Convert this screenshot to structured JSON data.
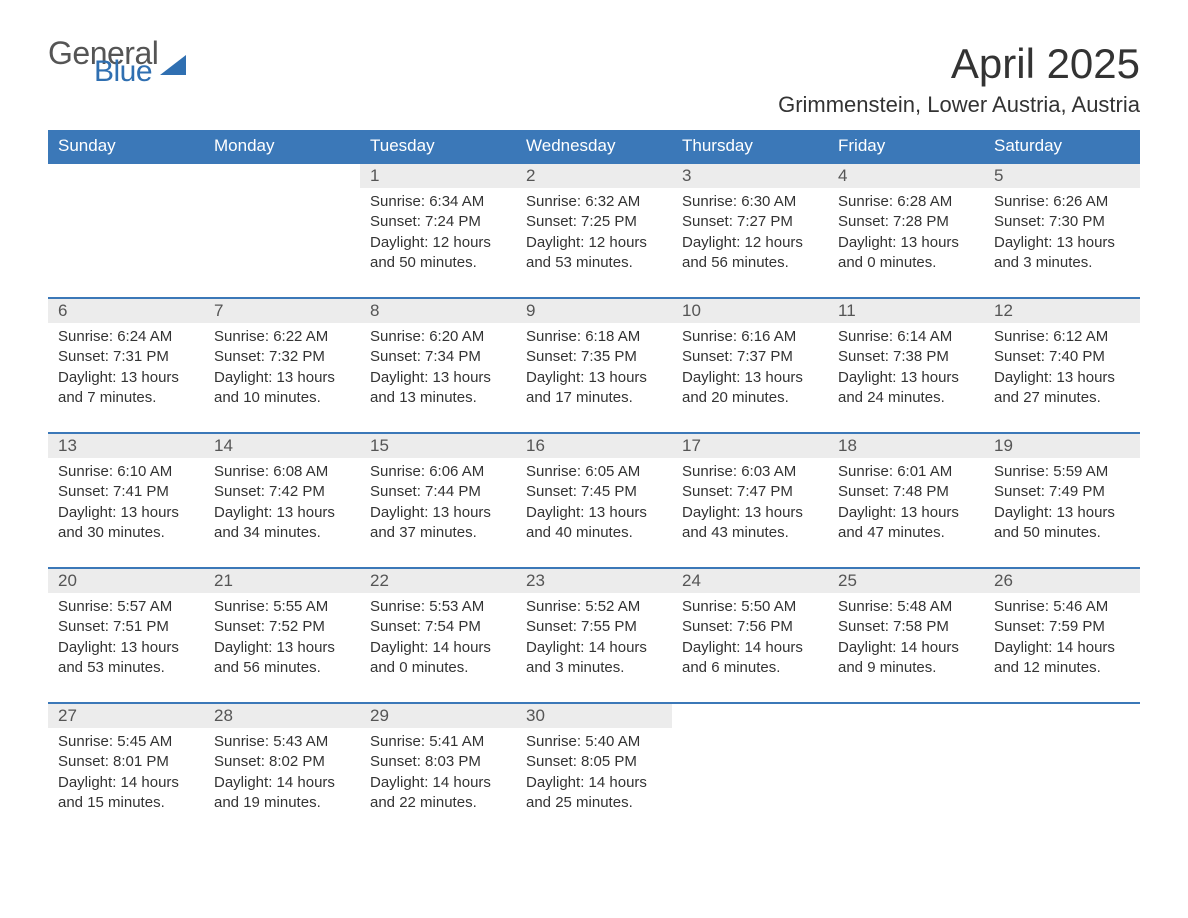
{
  "brand": {
    "word1": "General",
    "word2": "Blue"
  },
  "title": "April 2025",
  "location": "Grimmenstein, Lower Austria, Austria",
  "day_headers": [
    "Sunday",
    "Monday",
    "Tuesday",
    "Wednesday",
    "Thursday",
    "Friday",
    "Saturday"
  ],
  "colors": {
    "header_bg": "#3b78b8",
    "header_text": "#ffffff",
    "daynum_bg": "#ececec",
    "rule": "#3b78b8",
    "brand_blue": "#2f6fb1"
  },
  "weeks": [
    [
      null,
      null,
      {
        "n": "1",
        "sunrise": "6:34 AM",
        "sunset": "7:24 PM",
        "dl_h": "12",
        "dl_m": "50"
      },
      {
        "n": "2",
        "sunrise": "6:32 AM",
        "sunset": "7:25 PM",
        "dl_h": "12",
        "dl_m": "53"
      },
      {
        "n": "3",
        "sunrise": "6:30 AM",
        "sunset": "7:27 PM",
        "dl_h": "12",
        "dl_m": "56"
      },
      {
        "n": "4",
        "sunrise": "6:28 AM",
        "sunset": "7:28 PM",
        "dl_h": "13",
        "dl_m": "0"
      },
      {
        "n": "5",
        "sunrise": "6:26 AM",
        "sunset": "7:30 PM",
        "dl_h": "13",
        "dl_m": "3"
      }
    ],
    [
      {
        "n": "6",
        "sunrise": "6:24 AM",
        "sunset": "7:31 PM",
        "dl_h": "13",
        "dl_m": "7"
      },
      {
        "n": "7",
        "sunrise": "6:22 AM",
        "sunset": "7:32 PM",
        "dl_h": "13",
        "dl_m": "10"
      },
      {
        "n": "8",
        "sunrise": "6:20 AM",
        "sunset": "7:34 PM",
        "dl_h": "13",
        "dl_m": "13"
      },
      {
        "n": "9",
        "sunrise": "6:18 AM",
        "sunset": "7:35 PM",
        "dl_h": "13",
        "dl_m": "17"
      },
      {
        "n": "10",
        "sunrise": "6:16 AM",
        "sunset": "7:37 PM",
        "dl_h": "13",
        "dl_m": "20"
      },
      {
        "n": "11",
        "sunrise": "6:14 AM",
        "sunset": "7:38 PM",
        "dl_h": "13",
        "dl_m": "24"
      },
      {
        "n": "12",
        "sunrise": "6:12 AM",
        "sunset": "7:40 PM",
        "dl_h": "13",
        "dl_m": "27"
      }
    ],
    [
      {
        "n": "13",
        "sunrise": "6:10 AM",
        "sunset": "7:41 PM",
        "dl_h": "13",
        "dl_m": "30"
      },
      {
        "n": "14",
        "sunrise": "6:08 AM",
        "sunset": "7:42 PM",
        "dl_h": "13",
        "dl_m": "34"
      },
      {
        "n": "15",
        "sunrise": "6:06 AM",
        "sunset": "7:44 PM",
        "dl_h": "13",
        "dl_m": "37"
      },
      {
        "n": "16",
        "sunrise": "6:05 AM",
        "sunset": "7:45 PM",
        "dl_h": "13",
        "dl_m": "40"
      },
      {
        "n": "17",
        "sunrise": "6:03 AM",
        "sunset": "7:47 PM",
        "dl_h": "13",
        "dl_m": "43"
      },
      {
        "n": "18",
        "sunrise": "6:01 AM",
        "sunset": "7:48 PM",
        "dl_h": "13",
        "dl_m": "47"
      },
      {
        "n": "19",
        "sunrise": "5:59 AM",
        "sunset": "7:49 PM",
        "dl_h": "13",
        "dl_m": "50"
      }
    ],
    [
      {
        "n": "20",
        "sunrise": "5:57 AM",
        "sunset": "7:51 PM",
        "dl_h": "13",
        "dl_m": "53"
      },
      {
        "n": "21",
        "sunrise": "5:55 AM",
        "sunset": "7:52 PM",
        "dl_h": "13",
        "dl_m": "56"
      },
      {
        "n": "22",
        "sunrise": "5:53 AM",
        "sunset": "7:54 PM",
        "dl_h": "14",
        "dl_m": "0"
      },
      {
        "n": "23",
        "sunrise": "5:52 AM",
        "sunset": "7:55 PM",
        "dl_h": "14",
        "dl_m": "3"
      },
      {
        "n": "24",
        "sunrise": "5:50 AM",
        "sunset": "7:56 PM",
        "dl_h": "14",
        "dl_m": "6"
      },
      {
        "n": "25",
        "sunrise": "5:48 AM",
        "sunset": "7:58 PM",
        "dl_h": "14",
        "dl_m": "9"
      },
      {
        "n": "26",
        "sunrise": "5:46 AM",
        "sunset": "7:59 PM",
        "dl_h": "14",
        "dl_m": "12"
      }
    ],
    [
      {
        "n": "27",
        "sunrise": "5:45 AM",
        "sunset": "8:01 PM",
        "dl_h": "14",
        "dl_m": "15"
      },
      {
        "n": "28",
        "sunrise": "5:43 AM",
        "sunset": "8:02 PM",
        "dl_h": "14",
        "dl_m": "19"
      },
      {
        "n": "29",
        "sunrise": "5:41 AM",
        "sunset": "8:03 PM",
        "dl_h": "14",
        "dl_m": "22"
      },
      {
        "n": "30",
        "sunrise": "5:40 AM",
        "sunset": "8:05 PM",
        "dl_h": "14",
        "dl_m": "25"
      },
      null,
      null,
      null
    ]
  ],
  "labels": {
    "sunrise": "Sunrise: ",
    "sunset": "Sunset: ",
    "daylight_pre": "Daylight: ",
    "hours_word": " hours",
    "and_word": "and ",
    "minutes_word": " minutes."
  }
}
